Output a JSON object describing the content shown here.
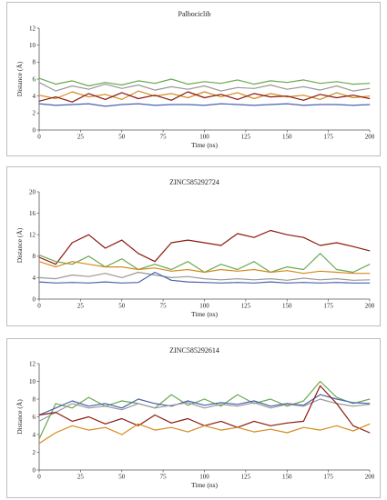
{
  "charts": [
    {
      "chart_data": {
        "type": "line",
        "title": "Palbociclib",
        "xlabel": "Time (ns)",
        "ylabel": "Distance (Å)",
        "xlim": [
          0,
          200
        ],
        "ylim": [
          0,
          12
        ],
        "xticks": [
          0,
          25,
          50,
          75,
          100,
          125,
          150,
          175,
          200
        ],
        "yticks": [
          0,
          2,
          4,
          6,
          8,
          10,
          12
        ],
        "grid": false,
        "x": [
          0,
          10,
          20,
          30,
          40,
          50,
          60,
          70,
          80,
          90,
          100,
          110,
          120,
          130,
          140,
          150,
          160,
          170,
          180,
          190,
          200
        ],
        "series": [
          {
            "color": "#6aa84f",
            "values": [
              6.1,
              5.4,
              5.8,
              5.2,
              5.6,
              5.3,
              5.8,
              5.5,
              6.0,
              5.4,
              5.7,
              5.5,
              5.9,
              5.4,
              5.8,
              5.6,
              5.9,
              5.5,
              5.7,
              5.4,
              5.5
            ]
          },
          {
            "color": "#999999",
            "values": [
              5.6,
              4.6,
              5.2,
              4.8,
              5.4,
              4.9,
              5.3,
              4.7,
              5.1,
              4.8,
              5.2,
              4.6,
              5.0,
              4.9,
              5.3,
              4.8,
              5.1,
              4.7,
              5.2,
              4.6,
              4.9
            ]
          },
          {
            "color": "#d68a1e",
            "values": [
              4.1,
              3.7,
              4.5,
              3.9,
              4.2,
              3.6,
              4.6,
              4.0,
              4.3,
              3.8,
              4.5,
              3.9,
              4.4,
              3.7,
              4.3,
              3.9,
              4.1,
              3.6,
              4.4,
              3.8,
              4.0
            ]
          },
          {
            "color": "#8b1a0e",
            "values": [
              3.4,
              3.9,
              3.3,
              4.3,
              3.6,
              4.4,
              3.7,
              4.1,
              3.5,
              4.5,
              3.8,
              4.2,
              3.6,
              4.3,
              3.9,
              4.0,
              3.5,
              4.2,
              3.8,
              4.1,
              3.7
            ]
          },
          {
            "color": "#4a62b0",
            "values": [
              3.1,
              2.9,
              3.0,
              3.1,
              2.8,
              3.0,
              3.1,
              2.9,
              3.0,
              3.0,
              2.9,
              3.1,
              3.0,
              2.9,
              3.0,
              3.1,
              2.9,
              3.0,
              3.0,
              2.9,
              3.0
            ]
          }
        ]
      }
    },
    {
      "chart_data": {
        "type": "line",
        "title": "ZINC585292724",
        "xlabel": "Time (ns)",
        "ylabel": "Distance (Å)",
        "xlim": [
          0,
          200
        ],
        "ylim": [
          0,
          20
        ],
        "xticks": [
          0,
          25,
          50,
          75,
          100,
          125,
          150,
          175,
          200
        ],
        "yticks": [
          0,
          4,
          8,
          12,
          16,
          20
        ],
        "grid": false,
        "x": [
          0,
          10,
          20,
          30,
          40,
          50,
          60,
          70,
          80,
          90,
          100,
          110,
          120,
          130,
          140,
          150,
          160,
          170,
          180,
          190,
          200
        ],
        "series": [
          {
            "color": "#8b1a0e",
            "values": [
              7.8,
              6.5,
              10.5,
              12.0,
              9.5,
              11.0,
              8.5,
              7.0,
              10.5,
              11.0,
              10.5,
              10.0,
              12.2,
              11.5,
              12.8,
              12.0,
              11.5,
              10.0,
              10.5,
              9.8,
              9.0
            ]
          },
          {
            "color": "#6aa84f",
            "values": [
              8.2,
              7.0,
              6.5,
              8.0,
              6.0,
              7.5,
              5.5,
              6.5,
              5.5,
              7.0,
              5.0,
              6.5,
              5.5,
              7.0,
              5.0,
              6.0,
              5.5,
              8.5,
              5.5,
              5.0,
              6.5
            ]
          },
          {
            "color": "#d68a1e",
            "values": [
              7.0,
              6.0,
              7.0,
              6.5,
              6.0,
              6.0,
              5.5,
              5.8,
              5.2,
              5.5,
              5.0,
              5.5,
              5.2,
              5.5,
              5.0,
              5.3,
              4.8,
              5.2,
              5.0,
              4.8,
              4.8
            ]
          },
          {
            "color": "#999999",
            "values": [
              4.0,
              3.8,
              4.5,
              4.2,
              4.8,
              4.0,
              5.0,
              4.5,
              4.0,
              4.2,
              3.8,
              3.6,
              3.8,
              3.6,
              3.8,
              3.5,
              3.9,
              3.6,
              3.8,
              3.5,
              3.6
            ]
          },
          {
            "color": "#4a62b0",
            "values": [
              3.2,
              3.0,
              3.1,
              3.0,
              3.2,
              3.0,
              3.1,
              5.0,
              3.5,
              3.2,
              3.1,
              3.0,
              3.1,
              3.0,
              3.2,
              3.0,
              3.1,
              3.0,
              3.1,
              3.0,
              3.0
            ]
          }
        ]
      }
    },
    {
      "chart_data": {
        "type": "line",
        "title": "ZINC585292614",
        "xlabel": "Time (ns)",
        "ylabel": "Distance (Å)",
        "xlim": [
          0,
          200
        ],
        "ylim": [
          0,
          12
        ],
        "xticks": [
          0,
          25,
          50,
          75,
          100,
          125,
          150,
          175,
          200
        ],
        "yticks": [
          0,
          2,
          4,
          6,
          8,
          10,
          12
        ],
        "grid": false,
        "x": [
          0,
          10,
          20,
          30,
          40,
          50,
          60,
          70,
          80,
          90,
          100,
          110,
          120,
          130,
          140,
          150,
          160,
          170,
          180,
          190,
          200
        ],
        "series": [
          {
            "color": "#6aa84f",
            "values": [
              3.5,
              7.5,
              7.0,
              8.2,
              7.2,
              7.8,
              7.5,
              7.0,
              8.5,
              7.3,
              8.0,
              7.2,
              8.5,
              7.5,
              8.0,
              7.2,
              7.8,
              10.0,
              8.2,
              7.5,
              8.0
            ]
          },
          {
            "color": "#4a62b0",
            "values": [
              6.2,
              7.0,
              7.8,
              7.2,
              7.5,
              7.0,
              8.0,
              7.5,
              7.2,
              7.8,
              7.3,
              7.6,
              7.4,
              7.8,
              7.2,
              7.5,
              7.3,
              8.5,
              8.0,
              7.6,
              7.5
            ]
          },
          {
            "color": "#999999",
            "values": [
              5.5,
              6.5,
              7.5,
              7.0,
              7.2,
              6.8,
              7.5,
              7.0,
              7.3,
              7.6,
              7.0,
              7.4,
              7.2,
              7.6,
              7.0,
              7.4,
              7.2,
              8.0,
              7.5,
              7.2,
              7.4
            ]
          },
          {
            "color": "#8b1a0e",
            "values": [
              6.2,
              6.5,
              5.5,
              6.0,
              5.2,
              5.8,
              5.0,
              6.2,
              5.3,
              5.8,
              5.0,
              5.5,
              4.8,
              5.5,
              5.0,
              5.3,
              5.5,
              9.5,
              7.5,
              5.0,
              4.2
            ]
          },
          {
            "color": "#d68a1e",
            "values": [
              3.0,
              4.2,
              5.0,
              4.5,
              4.8,
              4.0,
              5.2,
              4.5,
              4.8,
              4.3,
              5.0,
              4.5,
              4.8,
              4.3,
              4.6,
              4.2,
              4.8,
              4.5,
              5.0,
              4.4,
              5.2
            ]
          }
        ]
      }
    }
  ]
}
